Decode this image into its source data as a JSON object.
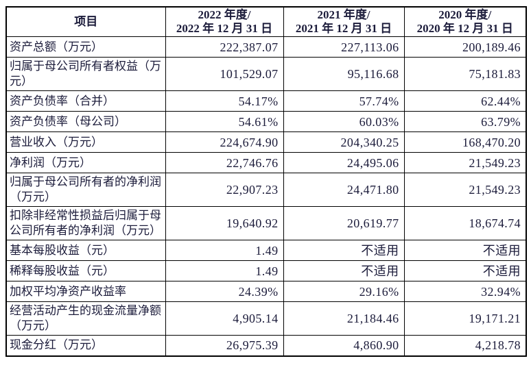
{
  "document": {
    "background": "#ffffff",
    "text_color": "#1b1b3a",
    "border_color": "#000000"
  },
  "table": {
    "header": {
      "item_column": "项目",
      "year_columns": [
        {
          "line1": "2022 年度/",
          "line2": "2022 年 12 月 31 日"
        },
        {
          "line1": "2021 年度/",
          "line2": "2021 年 12 月 31 日"
        },
        {
          "line1": "2020 年度/",
          "line2": "2020 年 12 月 31 日"
        }
      ]
    },
    "rows": [
      {
        "label": "资产总额（万元）",
        "values": [
          "222,387.07",
          "227,113.06",
          "200,189.46"
        ]
      },
      {
        "label": "归属于母公司所有者权益（万元）",
        "values": [
          "101,529.07",
          "95,116.68",
          "75,181.83"
        ]
      },
      {
        "label": "资产负债率（合并）",
        "values": [
          "54.17%",
          "57.74%",
          "62.44%"
        ]
      },
      {
        "label": "资产负债率（母公司）",
        "values": [
          "54.61%",
          "60.03%",
          "63.79%"
        ]
      },
      {
        "label": "营业收入（万元）",
        "values": [
          "224,674.90",
          "204,340.25",
          "168,470.20"
        ]
      },
      {
        "label": "净利润（万元）",
        "values": [
          "22,746.76",
          "24,495.06",
          "21,549.23"
        ]
      },
      {
        "label": "归属于母公司所有者的净利润（万元）",
        "values": [
          "22,907.23",
          "24,471.80",
          "21,549.23"
        ]
      },
      {
        "label": "扣除非经常性损益后归属于母公司所有者的净利润（万元）",
        "values": [
          "19,640.92",
          "20,619.77",
          "18,674.74"
        ]
      },
      {
        "label": "基本每股收益（元）",
        "values": [
          "1.49",
          "不适用",
          "不适用"
        ]
      },
      {
        "label": "稀释每股收益（元）",
        "values": [
          "1.49",
          "不适用",
          "不适用"
        ]
      },
      {
        "label": "加权平均净资产收益率",
        "values": [
          "24.39%",
          "29.16%",
          "32.94%"
        ]
      },
      {
        "label": "经营活动产生的现金流量净额（万元）",
        "values": [
          "4,905.14",
          "21,184.46",
          "19,171.21"
        ]
      },
      {
        "label": "现金分红（万元）",
        "values": [
          "26,975.39",
          "4,860.90",
          "4,218.78"
        ]
      }
    ]
  }
}
